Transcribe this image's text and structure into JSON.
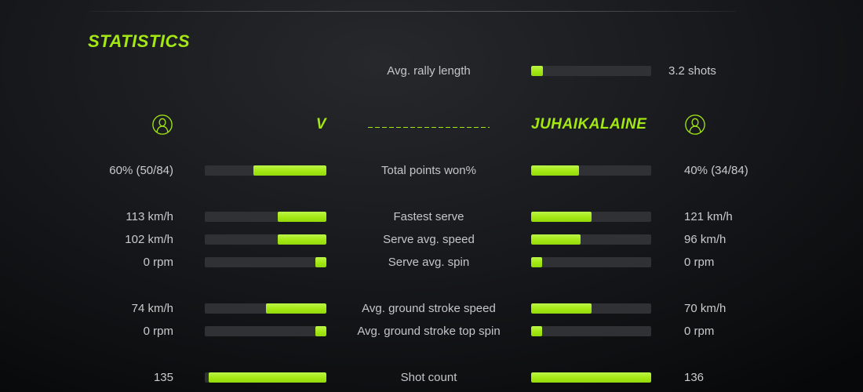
{
  "colors": {
    "accent": "#a3e813",
    "bar_track": "#2f3134",
    "value_text": "#c9cbcc"
  },
  "title": "STATISTICS",
  "rally": {
    "label": "Avg. rally length",
    "value": "3.2 shots",
    "fill_pct": 10
  },
  "players": {
    "left_name": "V",
    "right_name": "JUHAIKALAINE",
    "left_icon": "person-circle-icon",
    "right_icon": "person-circle-icon"
  },
  "stats": {
    "rows": [
      {
        "label": "Total points won%",
        "left_value": "60% (50/84)",
        "right_value": "40% (34/84)",
        "left_fill": 60,
        "right_fill": 40,
        "gap_before": false
      },
      {
        "label": "Fastest serve",
        "left_value": "113 km/h",
        "right_value": "121 km/h",
        "left_fill": 40,
        "right_fill": 50,
        "gap_before": true
      },
      {
        "label": "Serve avg. speed",
        "left_value": "102 km/h",
        "right_value": "96 km/h",
        "left_fill": 40,
        "right_fill": 41,
        "gap_before": false
      },
      {
        "label": "Serve avg. spin",
        "left_value": "0 rpm",
        "right_value": "0 rpm",
        "left_fill": 9,
        "right_fill": 9,
        "gap_before": false
      },
      {
        "label": "Avg. ground stroke speed",
        "left_value": "74 km/h",
        "right_value": "70 km/h",
        "left_fill": 50,
        "right_fill": 50,
        "gap_before": true
      },
      {
        "label": "Avg. ground stroke top spin",
        "left_value": "0 rpm",
        "right_value": "0 rpm",
        "left_fill": 9,
        "right_fill": 9,
        "gap_before": false
      },
      {
        "label": "Shot count",
        "left_value": "135",
        "right_value": "136",
        "left_fill": 97,
        "right_fill": 100,
        "gap_before": true
      }
    ]
  }
}
